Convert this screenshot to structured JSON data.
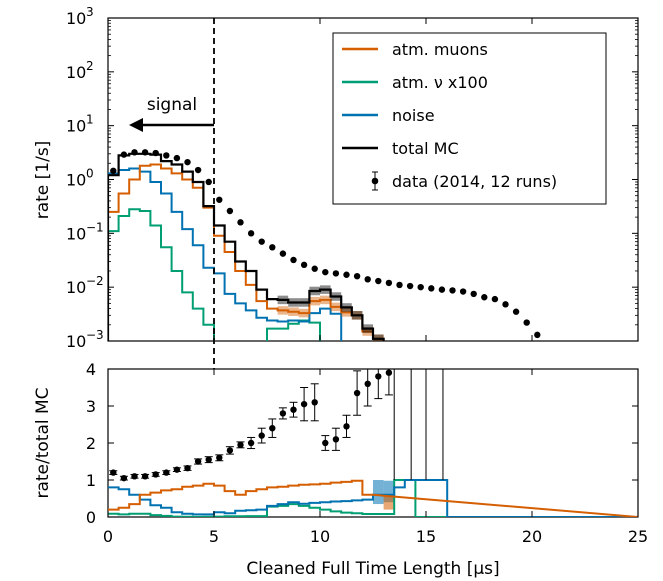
{
  "chart_data": [
    {
      "type": "step",
      "panel": "main",
      "ylabel": "rate [1/s]",
      "yscale": "log",
      "ylim": [
        0.001,
        1000
      ],
      "xlim": [
        0,
        25
      ],
      "ytick_labels": [
        {
          "v": 0.001,
          "base": "10",
          "exp": "−3"
        },
        {
          "v": 0.01,
          "base": "10",
          "exp": "−2"
        },
        {
          "v": 0.1,
          "base": "10",
          "exp": "−1"
        },
        {
          "v": 1,
          "base": "10",
          "exp": "0"
        },
        {
          "v": 10,
          "base": "10",
          "exp": "1"
        },
        {
          "v": 100,
          "base": "10",
          "exp": "2"
        },
        {
          "v": 1000,
          "base": "10",
          "exp": "3"
        }
      ],
      "bin_edges": [
        0,
        0.5,
        1,
        1.5,
        2,
        2.5,
        3,
        3.5,
        4,
        4.5,
        5,
        5.5,
        6,
        6.5,
        7,
        7.5,
        8,
        8.5,
        9,
        9.5,
        10,
        10.5,
        11,
        11.5,
        12,
        12.5,
        13,
        13.5,
        14,
        14.5,
        15,
        15.5,
        16,
        16.5,
        17,
        17.5,
        18,
        18.5,
        19,
        19.5,
        20,
        20.5,
        21,
        21.5,
        22,
        22.5,
        23,
        23.5,
        24,
        24.5,
        25
      ],
      "series": [
        {
          "name": "atm. muons",
          "color": "#d55e00",
          "values": [
            0.25,
            0.55,
            1.0,
            1.8,
            1.9,
            1.6,
            1.3,
            1.0,
            0.7,
            0.3,
            0.09,
            0.045,
            0.02,
            0.011,
            0.0055,
            0.004,
            0.0037,
            0.0035,
            0.0033,
            0.0055,
            0.0058,
            0.0043,
            0.0034,
            0.003,
            0.0015,
            0.0011
          ]
        },
        {
          "name": "atm. ν x100",
          "color": "#009e73",
          "values": [
            0.11,
            0.21,
            0.28,
            0.26,
            0.14,
            0.055,
            0.02,
            0.008,
            0.004,
            0.002,
            null,
            null,
            null,
            null,
            null,
            0.0017,
            0.0017,
            0.0021,
            0.0024,
            0.0022,
            null
          ]
        },
        {
          "name": "noise",
          "color": "#0072b2",
          "values": [
            1.3,
            1.5,
            1.6,
            1.4,
            0.9,
            0.55,
            0.25,
            0.12,
            0.06,
            0.023,
            0.018,
            0.0075,
            0.005,
            0.0037,
            0.0027,
            0.0024,
            0.0023,
            0.0024,
            0.0023,
            0.0033,
            0.004,
            0.0032,
            null,
            null,
            null
          ]
        },
        {
          "name": "total MC",
          "color": "#000000",
          "values": [
            1.2,
            2.8,
            3.0,
            3.0,
            2.9,
            2.2,
            1.9,
            1.4,
            0.9,
            0.32,
            0.14,
            0.07,
            0.03,
            0.02,
            0.009,
            0.006,
            0.0058,
            0.0052,
            0.0052,
            0.0085,
            0.009,
            0.0067,
            0.0042,
            0.003,
            0.0017,
            0.0011
          ]
        }
      ],
      "data_points": {
        "name": "data (2014, 12 runs)",
        "x": [
          0.25,
          0.75,
          1.25,
          1.75,
          2.25,
          2.75,
          3.25,
          3.75,
          4.25,
          4.75,
          5.25,
          5.75,
          6.25,
          6.75,
          7.25,
          7.75,
          8.25,
          8.75,
          9.25,
          9.75,
          10.25,
          10.75,
          11.25,
          11.75,
          12.25,
          12.75,
          13.25,
          13.75,
          14.25,
          14.75,
          15.25,
          15.75,
          16.25,
          16.75,
          17.25,
          17.75,
          18.25,
          18.75,
          19.25,
          19.75,
          20.25
        ],
        "y": [
          1.45,
          2.9,
          3.2,
          3.2,
          3.1,
          2.8,
          2.5,
          2.1,
          1.5,
          0.9,
          0.42,
          0.26,
          0.16,
          0.1,
          0.07,
          0.055,
          0.042,
          0.032,
          0.026,
          0.022,
          0.019,
          0.018,
          0.017,
          0.016,
          0.014,
          0.013,
          0.012,
          0.011,
          0.0105,
          0.01,
          0.0095,
          0.009,
          0.0087,
          0.0083,
          0.0075,
          0.0065,
          0.006,
          0.0048,
          0.0035,
          0.0022,
          0.0013
        ]
      },
      "signal_cut": 5,
      "annotation": "signal"
    },
    {
      "type": "step",
      "panel": "ratio",
      "xlabel": "Cleaned Full Time Length [μs]",
      "ylabel": "rate/total MC",
      "xlim": [
        0,
        25
      ],
      "ylim": [
        0,
        4
      ],
      "xticks": [
        0,
        5,
        10,
        15,
        20,
        25
      ],
      "yticks": [
        0,
        1,
        2,
        3,
        4
      ],
      "series": [
        {
          "name": "atm. muons",
          "color": "#d55e00",
          "values": [
            0.2,
            0.25,
            0.35,
            0.6,
            0.66,
            0.72,
            0.75,
            0.82,
            0.85,
            0.9,
            0.85,
            0.7,
            0.6,
            0.7,
            0.75,
            0.8,
            0.82,
            0.85,
            0.87,
            0.88,
            0.9,
            0.93,
            0.95,
            0.98,
            0.6
          ]
        },
        {
          "name": "atm. ν x100",
          "color": "#009e73",
          "values": [
            0.09,
            0.07,
            0.09,
            0.09,
            0.05,
            0.03,
            0.01,
            0.006,
            0.004,
            0.006,
            0.01,
            0.02,
            0.02,
            0.025,
            0.025,
            0.28,
            0.3,
            0.35,
            0.3,
            0.25,
            0.2,
            0.15,
            0.12,
            0.1,
            0.08,
            0.08,
            0.08,
            1.0,
            1.0,
            0.0
          ]
        },
        {
          "name": "noise",
          "color": "#0072b2",
          "values": [
            0.8,
            0.75,
            0.6,
            0.47,
            0.32,
            0.25,
            0.13,
            0.09,
            0.07,
            0.07,
            0.13,
            0.1,
            0.17,
            0.18,
            0.2,
            0.3,
            0.35,
            0.4,
            0.36,
            0.38,
            0.4,
            0.42,
            0.43,
            0.45,
            0.47,
            0.6,
            0.6,
            0.8,
            1.0,
            1.0,
            1.0,
            1.0,
            0.0
          ]
        }
      ],
      "data_points": {
        "x": [
          0.25,
          0.75,
          1.25,
          1.75,
          2.25,
          2.75,
          3.25,
          3.75,
          4.25,
          4.75,
          5.25,
          5.75,
          6.25,
          6.75,
          7.25,
          7.75,
          8.25,
          8.75,
          9.25,
          9.75,
          10.25,
          10.75,
          11.25,
          11.75,
          12.25,
          12.75,
          13.25
        ],
        "y": [
          1.2,
          1.05,
          1.1,
          1.1,
          1.15,
          1.2,
          1.28,
          1.32,
          1.5,
          1.55,
          1.6,
          1.8,
          1.95,
          2.0,
          2.2,
          2.4,
          2.8,
          2.9,
          3.05,
          3.1,
          2.0,
          2.1,
          2.45,
          3.35,
          3.6,
          3.8,
          3.9
        ],
        "err": [
          0.05,
          0.05,
          0.05,
          0.05,
          0.05,
          0.05,
          0.05,
          0.06,
          0.07,
          0.08,
          0.08,
          0.1,
          0.08,
          0.15,
          0.2,
          0.25,
          0.15,
          0.2,
          0.45,
          0.5,
          0.2,
          0.3,
          0.3,
          0.6,
          0.6,
          0.6,
          0.6
        ]
      }
    }
  ],
  "legend": {
    "items": [
      {
        "label": "atm. muons",
        "color": "#d55e00",
        "kind": "line"
      },
      {
        "label": "atm. ν x100",
        "color": "#009e73",
        "kind": "line"
      },
      {
        "label": "noise",
        "color": "#0072b2",
        "kind": "line"
      },
      {
        "label": "total MC",
        "color": "#000000",
        "kind": "line"
      },
      {
        "label": "data (2014, 12 runs)",
        "color": "#000000",
        "kind": "point"
      }
    ]
  }
}
